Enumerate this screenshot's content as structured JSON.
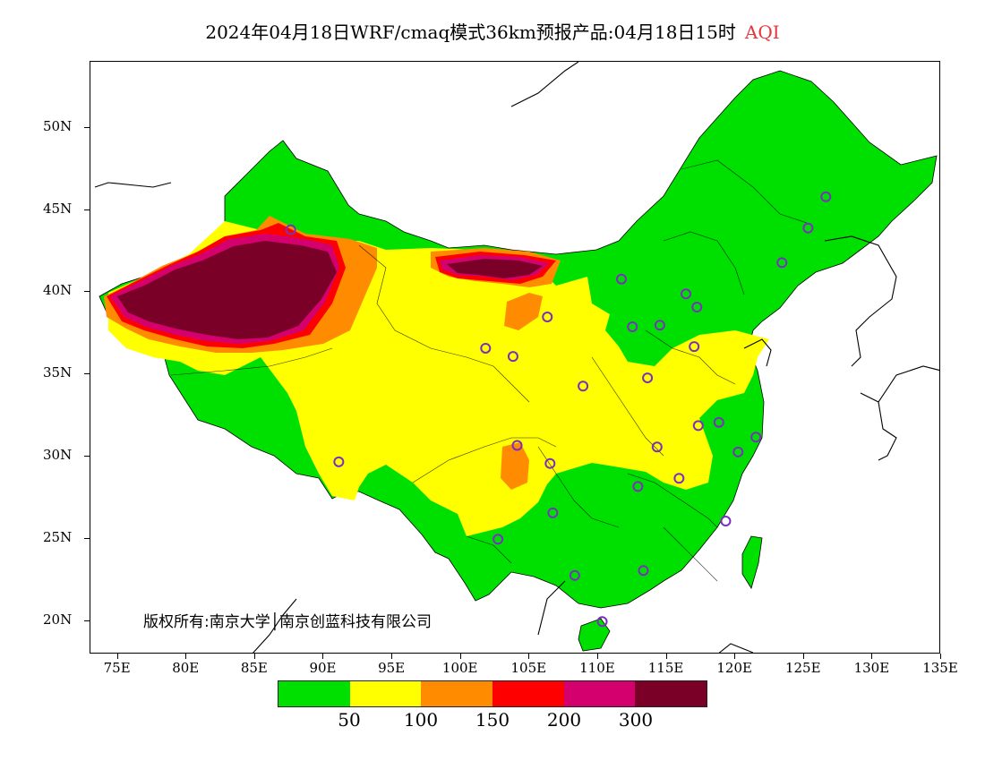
{
  "title": "2024年04月18日WRF/cmaq模式36km预报产品:04月18日15时",
  "title_variable": "AQI",
  "copyright_text": "版权所有:南京大学│南京创蓝科技有限公司",
  "lat_labels": [
    "50N",
    "45N",
    "40N",
    "35N",
    "30N",
    "25N",
    "20N"
  ],
  "lon_labels": [
    "75E",
    "80E",
    "85E",
    "90E",
    "95E",
    "100E",
    "105E",
    "110E",
    "115E",
    "120E",
    "125E",
    "130E",
    "135E"
  ],
  "legend": {
    "colors": [
      "#00e000",
      "#ffff00",
      "#ff8c00",
      "#ff0000",
      "#d4006e",
      "#7a0028"
    ],
    "labels": [
      "50",
      "100",
      "150",
      "200",
      "300"
    ]
  },
  "map": {
    "lon_range": [
      73,
      135
    ],
    "lat_range": [
      18,
      54
    ],
    "regions": [
      {
        "name": "green-background",
        "aqi_class": "good",
        "color": "#00e000"
      },
      {
        "name": "yellow-region",
        "aqi_class": "moderate",
        "color": "#ffff00"
      },
      {
        "name": "orange-region",
        "aqi_class": "unhealthy-sensitive",
        "color": "#ff8c00"
      },
      {
        "name": "red-region",
        "aqi_class": "unhealthy",
        "color": "#ff0000"
      },
      {
        "name": "magenta-region",
        "aqi_class": "very-unhealthy",
        "color": "#d4006e"
      },
      {
        "name": "maroon-region",
        "aqi_class": "hazardous",
        "color": "#7a0028"
      }
    ],
    "station_color": "#7b2fbe",
    "stations": [
      {
        "lon": 87.6,
        "lat": 43.8
      },
      {
        "lon": 91.1,
        "lat": 29.7
      },
      {
        "lon": 101.8,
        "lat": 36.6
      },
      {
        "lon": 103.8,
        "lat": 36.1
      },
      {
        "lon": 106.3,
        "lat": 38.5
      },
      {
        "lon": 111.7,
        "lat": 40.8
      },
      {
        "lon": 112.5,
        "lat": 37.9
      },
      {
        "lon": 114.5,
        "lat": 38.0
      },
      {
        "lon": 116.4,
        "lat": 39.9
      },
      {
        "lon": 117.2,
        "lat": 39.1
      },
      {
        "lon": 117.0,
        "lat": 36.7
      },
      {
        "lon": 113.6,
        "lat": 34.8
      },
      {
        "lon": 108.9,
        "lat": 34.3
      },
      {
        "lon": 104.1,
        "lat": 30.7
      },
      {
        "lon": 106.5,
        "lat": 29.6
      },
      {
        "lon": 106.7,
        "lat": 26.6
      },
      {
        "lon": 102.7,
        "lat": 25.0
      },
      {
        "lon": 108.3,
        "lat": 22.8
      },
      {
        "lon": 110.3,
        "lat": 20.0
      },
      {
        "lon": 113.3,
        "lat": 23.1
      },
      {
        "lon": 112.9,
        "lat": 28.2
      },
      {
        "lon": 115.9,
        "lat": 28.7
      },
      {
        "lon": 114.3,
        "lat": 30.6
      },
      {
        "lon": 117.3,
        "lat": 31.9
      },
      {
        "lon": 118.8,
        "lat": 32.1
      },
      {
        "lon": 121.5,
        "lat": 31.2
      },
      {
        "lon": 120.2,
        "lat": 30.3
      },
      {
        "lon": 119.3,
        "lat": 26.1
      },
      {
        "lon": 123.4,
        "lat": 41.8
      },
      {
        "lon": 125.3,
        "lat": 43.9
      },
      {
        "lon": 126.6,
        "lat": 45.8
      }
    ]
  }
}
